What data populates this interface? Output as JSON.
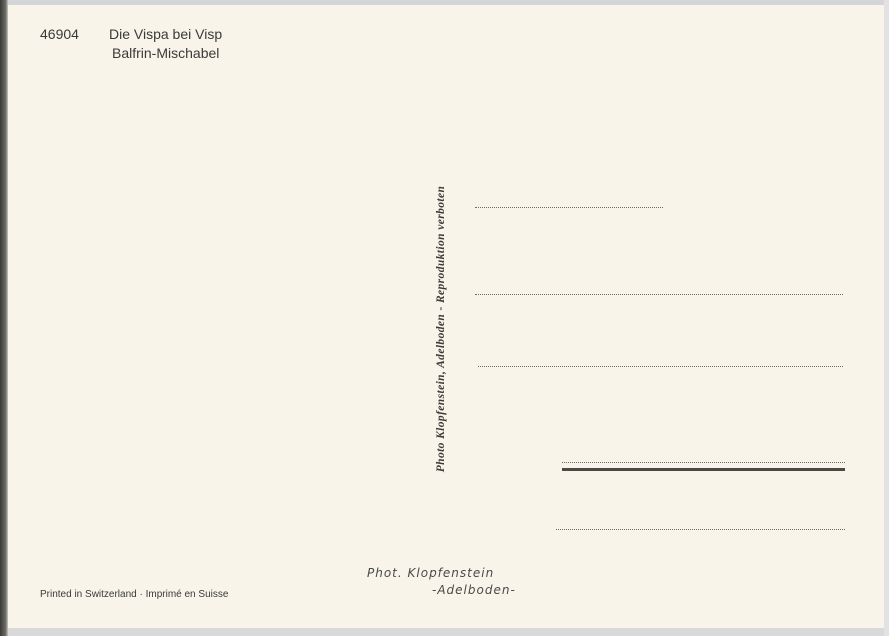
{
  "card": {
    "number": "46904",
    "title": "Die Vispa bei Visp",
    "subtitle": "Balfrin-Mischabel",
    "photo_credit_vertical": "Photo Klopfenstein, Adelboden - Reproduktion verboten",
    "signature_line1": "Phot. Klopfenstein",
    "signature_line2": "-Adelboden-",
    "printed_in": "Printed in Switzerland · Imprimé en Suisse"
  },
  "colors": {
    "paper": "#f8f4ea",
    "ink": "#3a3a38"
  }
}
